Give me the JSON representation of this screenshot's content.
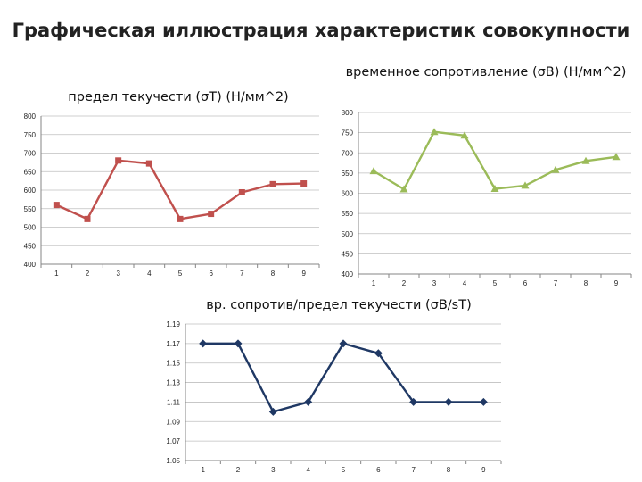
{
  "page": {
    "title": "Графическая иллюстрация характеристик совокупности"
  },
  "chart_data": [
    {
      "type": "line",
      "title": "предел текучести (σТ) (Н/мм^2)",
      "x": [
        1,
        2,
        3,
        4,
        5,
        6,
        7,
        8,
        9
      ],
      "y": [
        560,
        522,
        680,
        672,
        522,
        536,
        594,
        616,
        618
      ],
      "color": "#C0504D",
      "marker": "square",
      "ylim": [
        400,
        800
      ],
      "yticks": [
        400,
        450,
        500,
        550,
        600,
        650,
        700,
        750,
        800
      ],
      "ytick_labels": [
        "400",
        "450",
        "500",
        "550",
        "600",
        "650",
        "700",
        "750",
        "800"
      ],
      "grid": true
    },
    {
      "type": "line",
      "title": "временное сопротивление (σВ) (Н/мм^2)",
      "x": [
        1,
        2,
        3,
        4,
        5,
        6,
        7,
        8,
        9
      ],
      "y": [
        655,
        610,
        752,
        743,
        611,
        619,
        658,
        680,
        690
      ],
      "color": "#9BBB59",
      "marker": "triangle",
      "ylim": [
        400,
        800
      ],
      "yticks": [
        400,
        450,
        500,
        550,
        600,
        650,
        700,
        750,
        800
      ],
      "ytick_labels": [
        "400",
        "450",
        "500",
        "550",
        "600",
        "650",
        "700",
        "750",
        "800"
      ],
      "grid": true
    },
    {
      "type": "line",
      "title": "вр. сопротив/предел текучести (σВ/sТ)",
      "x": [
        1,
        2,
        3,
        4,
        5,
        6,
        7,
        8,
        9
      ],
      "y": [
        1.17,
        1.17,
        1.1,
        1.11,
        1.17,
        1.16,
        1.11,
        1.11,
        1.11
      ],
      "color": "#1F3864",
      "marker": "diamond",
      "ylim": [
        1.05,
        1.19
      ],
      "yticks": [
        1.05,
        1.07,
        1.09,
        1.11,
        1.13,
        1.15,
        1.17,
        1.19
      ],
      "ytick_labels": [
        "1.05",
        "1.07",
        "1.09",
        "1.11",
        "1.13",
        "1.15",
        "1.17",
        "1.19"
      ],
      "grid": true
    }
  ]
}
